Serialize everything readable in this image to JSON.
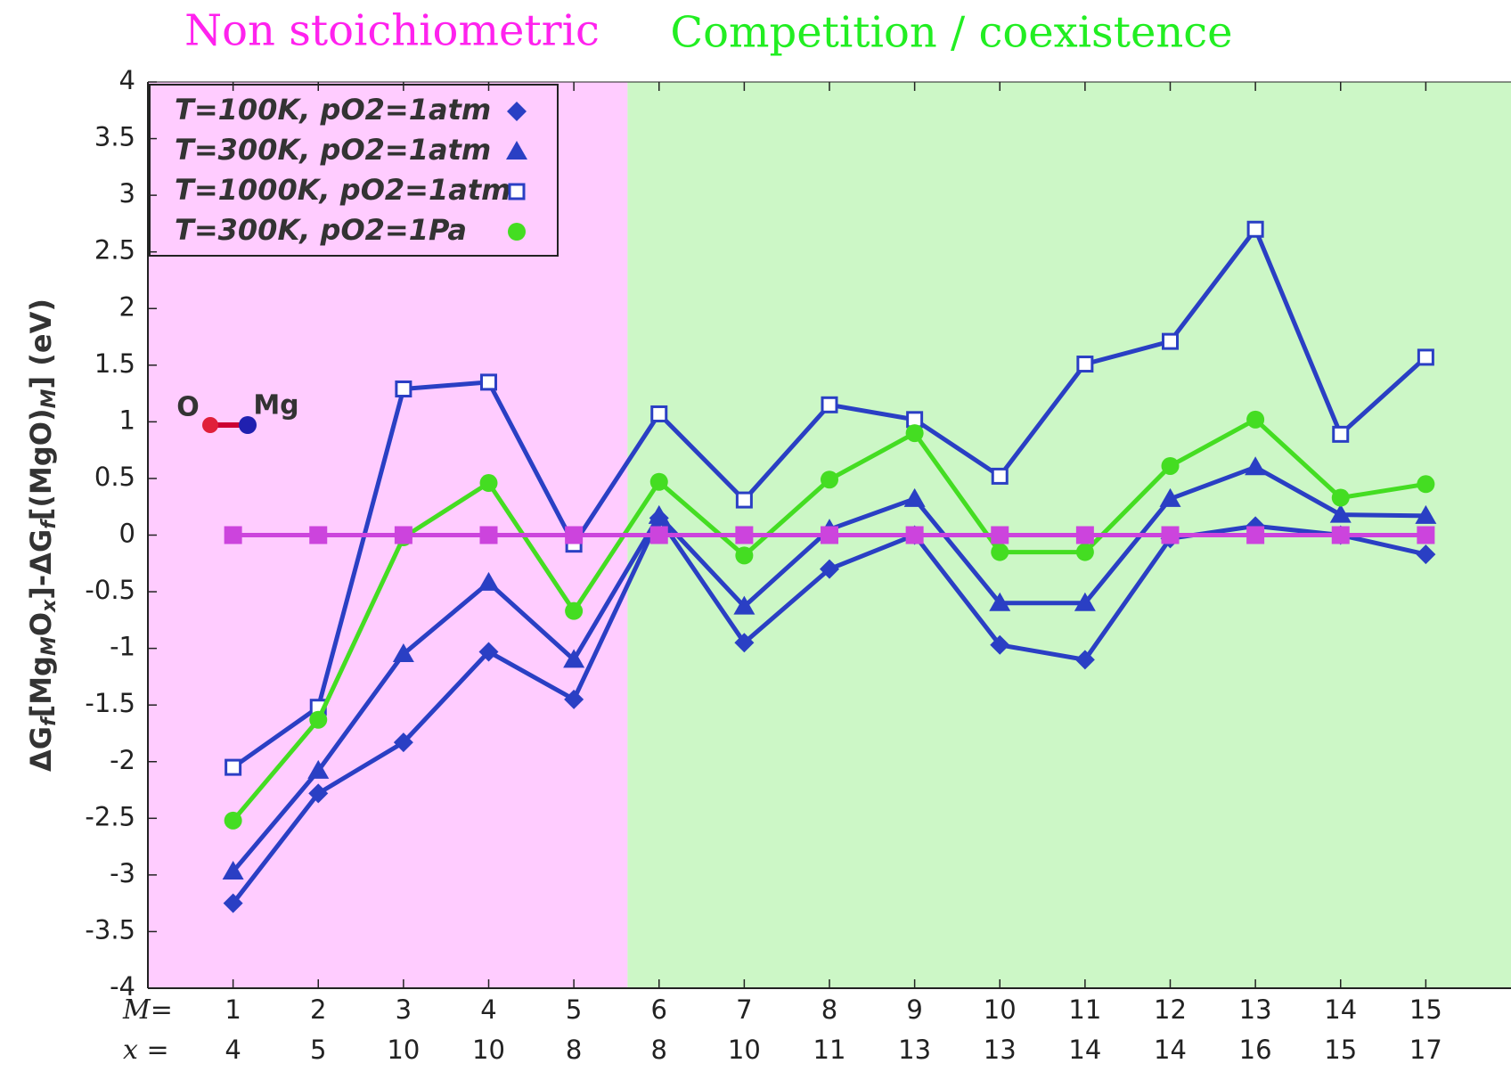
{
  "chart_data": {
    "type": "line",
    "annotations": [
      {
        "text": "Non stoichiometric",
        "color": "#ff22ee"
      },
      {
        "text": "Competition / coexistence",
        "color": "#22ee22"
      },
      {
        "text": "O",
        "color": "#333333"
      },
      {
        "text": "Mg",
        "color": "#333333"
      }
    ],
    "regions": [
      {
        "x": [
          0,
          5.63
        ],
        "color": "#ffccff"
      },
      {
        "x": [
          5.63,
          16
        ],
        "color": "#ccf7c6"
      }
    ],
    "ylabel_parts": [
      "ΔG",
      "f",
      "[Mg",
      "M",
      "O",
      "x",
      "]-ΔG",
      "f",
      "[(MgO)",
      "M",
      "] (eV)"
    ],
    "xlabel": "M=",
    "x_row_label": "x =",
    "x": [
      1,
      2,
      3,
      4,
      5,
      6,
      7,
      8,
      9,
      10,
      11,
      12,
      13,
      14,
      15
    ],
    "x_row": [
      4,
      5,
      10,
      10,
      8,
      8,
      10,
      11,
      13,
      13,
      14,
      14,
      16,
      15,
      17
    ],
    "xlim": [
      0,
      16
    ],
    "xticks": [
      1,
      2,
      3,
      4,
      5,
      6,
      7,
      8,
      9,
      10,
      11,
      12,
      13,
      14,
      15
    ],
    "ylim": [
      -4,
      4
    ],
    "yticks": [
      -4,
      -3.5,
      -3,
      -2.5,
      -2,
      -1.5,
      -1,
      -0.5,
      0,
      0.5,
      1,
      1.5,
      2,
      2.5,
      3,
      3.5,
      4
    ],
    "legend": "upper left",
    "series": [
      {
        "name": "T=100K,   pO2=1atm",
        "color": "#2a3fc4",
        "marker": "diamond",
        "values": [
          -3.25,
          -2.28,
          -1.83,
          -1.03,
          -1.45,
          0.15,
          -0.95,
          -0.3,
          0.0,
          -0.97,
          -1.1,
          -0.03,
          0.08,
          0.0,
          -0.17
        ]
      },
      {
        "name": "T=300K,   pO2=1atm",
        "color": "#2a3fc4",
        "marker": "triangle",
        "values": [
          -2.97,
          -2.08,
          -1.05,
          -0.42,
          -1.1,
          0.17,
          -0.63,
          0.05,
          0.32,
          -0.6,
          -0.6,
          0.32,
          0.6,
          0.18,
          0.17
        ]
      },
      {
        "name": "T=1000K, pO2=1atm",
        "color": "#2a3fc4",
        "marker": "open-square",
        "values": [
          -2.05,
          -1.52,
          1.29,
          1.35,
          -0.08,
          1.07,
          0.31,
          1.15,
          1.02,
          0.52,
          1.51,
          1.71,
          2.7,
          0.89,
          1.57
        ]
      },
      {
        "name": "T=300K,   pO2=1Pa",
        "color": "#44dd22",
        "marker": "circle",
        "values": [
          -2.52,
          -1.63,
          -0.02,
          0.46,
          -0.67,
          0.47,
          -0.18,
          0.49,
          0.9,
          -0.15,
          -0.15,
          0.61,
          1.02,
          0.33,
          0.45
        ]
      },
      {
        "color": "#cc44dd",
        "marker": "square",
        "values": [
          0,
          0,
          0,
          0,
          0,
          0,
          0,
          0,
          0,
          0,
          0,
          0,
          0,
          0,
          0
        ]
      }
    ]
  }
}
